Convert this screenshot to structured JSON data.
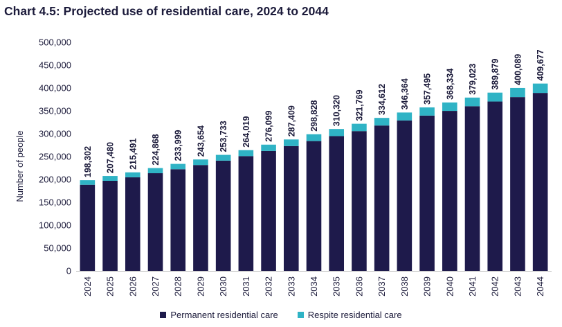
{
  "chart_data": {
    "type": "bar",
    "stacked": true,
    "title": "Chart 4.5: Projected use of residential care, 2024 to 2044",
    "xlabel": "",
    "ylabel": "Number of people",
    "ylim": [
      0,
      500000
    ],
    "yticks": [
      "0",
      "50,000",
      "100,000",
      "150,000",
      "200,000",
      "250,000",
      "300,000",
      "350,000",
      "400,000",
      "450,000",
      "500,000"
    ],
    "categories": [
      "2024",
      "2025",
      "2026",
      "2027",
      "2028",
      "2029",
      "2030",
      "2031",
      "2032",
      "2033",
      "2034",
      "2035",
      "2036",
      "2037",
      "2038",
      "2039",
      "2040",
      "2041",
      "2042",
      "2043",
      "2044"
    ],
    "series": [
      {
        "name": "Permanent residential care",
        "color": "#1e1a4b",
        "values": [
          188300,
          197000,
          204700,
          213600,
          222300,
          231500,
          241100,
          251000,
          262300,
          273000,
          283900,
          294800,
          305700,
          317900,
          329000,
          339600,
          349900,
          360100,
          370400,
          380100,
          389200
        ]
      },
      {
        "name": "Respite residential care",
        "color": "#2fb3c5",
        "values": [
          10002,
          10480,
          10791,
          11268,
          11699,
          12154,
          12633,
          13019,
          13799,
          14409,
          14928,
          15520,
          16069,
          16712,
          17364,
          17895,
          18434,
          18923,
          19479,
          19989,
          20477
        ]
      }
    ],
    "totals": [
      "198,302",
      "207,480",
      "215,491",
      "224,868",
      "233,999",
      "243,654",
      "253,733",
      "264,019",
      "276,099",
      "287,409",
      "298,828",
      "310,320",
      "321,769",
      "334,612",
      "346,364",
      "357,495",
      "368,334",
      "379,023",
      "389,879",
      "400,089",
      "409,677"
    ],
    "legend": [
      "Permanent residential care",
      "Respite residential care"
    ],
    "legend_position": "bottom"
  }
}
